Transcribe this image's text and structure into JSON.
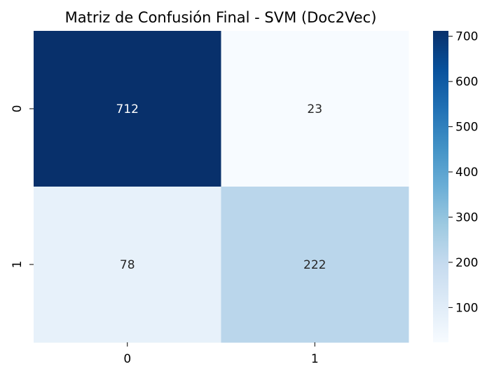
{
  "chart_data": {
    "type": "heatmap",
    "title": "Matriz de Confusión Final - SVM (Doc2Vec)",
    "xlabel": "",
    "ylabel": "",
    "x_categories": [
      "0",
      "1"
    ],
    "y_categories": [
      "0",
      "1"
    ],
    "values": [
      [
        712,
        23
      ],
      [
        78,
        222
      ]
    ],
    "colormap": "Blues",
    "colorbar": {
      "range": [
        23,
        712
      ],
      "ticks": [
        "100",
        "200",
        "300",
        "400",
        "500",
        "600",
        "700"
      ]
    }
  },
  "colors": {
    "cell_712": "#08306b",
    "cell_23": "#f7fbff",
    "cell_78": "#e6f0f9",
    "cell_222": "#bdd7ec",
    "text_dark_cell": "#ffffff",
    "text_light_cell": "#262626",
    "axis_text": "#000000"
  }
}
